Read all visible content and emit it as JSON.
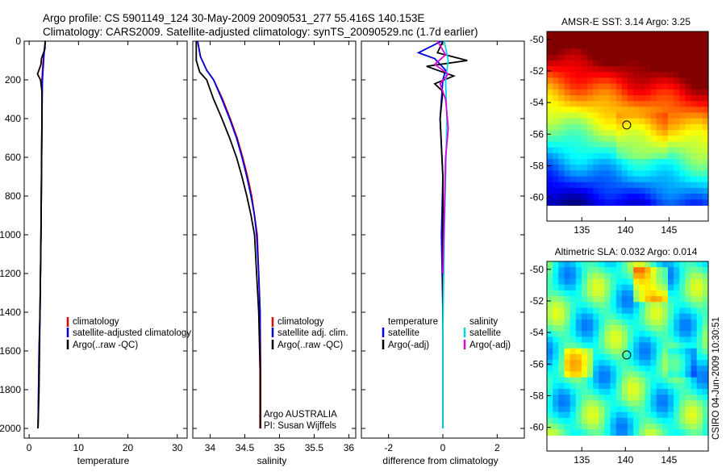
{
  "header": {
    "line1": "Argo profile: CS 5901149_124 30-May-2009 20090531_277 55.416S 140.153E",
    "line2": "Climatology: CARS2009. Satellite-adjusted climatology: synTS_20090529.nc (1.7d earlier)"
  },
  "chart_data": [
    {
      "type": "line",
      "id": "temperature",
      "xlabel": "temperature",
      "ylabel": "",
      "xlim": [
        -1,
        32
      ],
      "ylim": [
        2050,
        0
      ],
      "xticks": [
        0,
        10,
        20,
        30
      ],
      "yticks": [
        0,
        200,
        400,
        600,
        800,
        1000,
        1200,
        1400,
        1600,
        1800,
        2000
      ],
      "legend": [
        "climatology",
        "satellite-adjusted climatology",
        "Argo(..raw -QC)"
      ],
      "series": [
        {
          "name": "climatology",
          "color": "#dd0000",
          "x": [
            3.3,
            3.1,
            2.8,
            2.6,
            2.6,
            2.5,
            2.4,
            2.3,
            2.2,
            2.0,
            1.9,
            1.8
          ],
          "y": [
            0,
            40,
            110,
            200,
            400,
            700,
            1000,
            1200,
            1400,
            1600,
            1800,
            2000
          ]
        },
        {
          "name": "satellite-adjusted climatology",
          "color": "#0000dd",
          "x": [
            3.25,
            3.1,
            2.9,
            2.7,
            2.6,
            2.5,
            2.4,
            2.3,
            2.2,
            2.0,
            1.9,
            1.8
          ],
          "y": [
            0,
            40,
            110,
            200,
            400,
            700,
            1000,
            1200,
            1400,
            1600,
            1800,
            2000
          ]
        },
        {
          "name": "Argo(..raw -QC)",
          "color": "#000000",
          "x": [
            3.25,
            3.2,
            2.5,
            2.4,
            1.7,
            2.3,
            2.6,
            2.6,
            2.5,
            2.4,
            2.2,
            2.0,
            1.8
          ],
          "y": [
            0,
            40,
            90,
            120,
            170,
            200,
            260,
            400,
            700,
            1000,
            1400,
            1800,
            2000
          ]
        }
      ]
    },
    {
      "type": "line",
      "id": "salinity",
      "xlabel": "salinity",
      "xlim": [
        33.75,
        36.1
      ],
      "ylim": [
        2050,
        0
      ],
      "xticks": [
        34,
        34.5,
        35,
        35.5,
        36
      ],
      "yticks": [
        0,
        200,
        400,
        600,
        800,
        1000,
        1200,
        1400,
        1600,
        1800,
        2000
      ],
      "legend": [
        "climatology",
        "satellite adj. clim.",
        "Argo(..raw -QC)"
      ],
      "annotation": [
        "Argo AUSTRALIA",
        "PI: Susan Wijffels"
      ],
      "series": [
        {
          "name": "climatology",
          "color": "#dd0000",
          "x": [
            33.82,
            33.86,
            33.95,
            34.05,
            34.18,
            34.29,
            34.39,
            34.47,
            34.54,
            34.6,
            34.64,
            34.68,
            34.7,
            34.72,
            34.73,
            34.73
          ],
          "y": [
            0,
            80,
            150,
            200,
            300,
            400,
            500,
            600,
            700,
            800,
            900,
            1000,
            1200,
            1400,
            1700,
            2000
          ]
        },
        {
          "name": "satellite adj. clim.",
          "color": "#0000dd",
          "x": [
            33.82,
            33.86,
            33.95,
            34.05,
            34.17,
            34.28,
            34.38,
            34.46,
            34.53,
            34.59,
            34.64,
            34.67,
            34.7,
            34.72,
            34.72,
            34.72
          ],
          "y": [
            0,
            80,
            150,
            200,
            300,
            400,
            500,
            600,
            700,
            800,
            900,
            1000,
            1200,
            1400,
            1700,
            2000
          ]
        },
        {
          "name": "Argo(..raw -QC)",
          "color": "#000000",
          "x": [
            33.8,
            33.8,
            33.85,
            33.95,
            34.05,
            34.17,
            34.28,
            34.38,
            34.46,
            34.53,
            34.59,
            34.64,
            34.67,
            34.7,
            34.72,
            34.72
          ],
          "y": [
            0,
            100,
            160,
            200,
            300,
            400,
            500,
            600,
            700,
            800,
            900,
            1000,
            1200,
            1400,
            1700,
            2000
          ]
        }
      ]
    },
    {
      "type": "line",
      "id": "difference",
      "xlabel": "difference from climatology",
      "xlim": [
        -3,
        3
      ],
      "ylim": [
        2050,
        0
      ],
      "xticks": [
        -2,
        0,
        2
      ],
      "yticks": [
        0,
        200,
        400,
        600,
        800,
        1000,
        1200,
        1400,
        1600,
        1800,
        2000
      ],
      "legend_left_title": "temperature",
      "legend_left": [
        "satellite",
        "Argo(-adj)"
      ],
      "legend_right_title": "salinity",
      "legend_right": [
        "satellite",
        "Argo(-adj)"
      ],
      "series": [
        {
          "name": "temperature satellite",
          "color": "#0000dd",
          "x": [
            -0.05,
            -0.9,
            -0.3,
            0.1,
            0.0,
            -0.1,
            0.0,
            -0.05,
            0.0,
            0.0,
            0.0
          ],
          "y": [
            0,
            60,
            90,
            150,
            200,
            400,
            700,
            1000,
            1400,
            1800,
            2000
          ]
        },
        {
          "name": "temperature Argo(-adj)",
          "color": "#000000",
          "x": [
            0.0,
            -0.2,
            0.9,
            -0.6,
            0.4,
            -0.3,
            0.0,
            -0.1,
            0.0,
            0.0,
            0.0,
            0.0
          ],
          "y": [
            0,
            60,
            100,
            130,
            180,
            220,
            260,
            400,
            700,
            1000,
            1500,
            2000
          ]
        },
        {
          "name": "salinity satellite",
          "color": "#00d8e8",
          "x": [
            0.05,
            0.2,
            0.1,
            0.15,
            0.1,
            0.05,
            0.0,
            0.0
          ],
          "y": [
            0,
            100,
            200,
            400,
            700,
            1000,
            1500,
            2000
          ]
        },
        {
          "name": "salinity Argo(-adj)",
          "color": "#dd00dd",
          "x": [
            -0.2,
            0.1,
            -0.3,
            0.2,
            -0.1,
            0.1,
            0.2,
            0.1,
            0.05,
            0.0
          ],
          "y": [
            0,
            70,
            120,
            170,
            220,
            300,
            450,
            600,
            900,
            1200
          ]
        }
      ]
    },
    {
      "type": "heatmap",
      "id": "sst",
      "title": "AMSR-E SST: 3.14 Argo: 3.25",
      "xlim": [
        131,
        149.5
      ],
      "ylim": [
        -61.5,
        -49.5
      ],
      "xticks": [
        135,
        140,
        145
      ],
      "yticks": [
        -50,
        -52,
        -54,
        -56,
        -58,
        -60
      ],
      "marker": {
        "lon": 140.15,
        "lat": -55.42
      }
    },
    {
      "type": "heatmap",
      "id": "sla",
      "title": "Altimetric SLA: 0.032 Argo: 0.014",
      "xlim": [
        131,
        149.5
      ],
      "ylim": [
        -61.5,
        -49.5
      ],
      "xticks": [
        135,
        140,
        145
      ],
      "yticks": [
        -50,
        -52,
        -54,
        -56,
        -58,
        -60
      ],
      "marker": {
        "lon": 140.15,
        "lat": -55.42
      }
    }
  ],
  "footer": {
    "credit": "CSIRO 04-Jun-2009 10:30:51"
  }
}
